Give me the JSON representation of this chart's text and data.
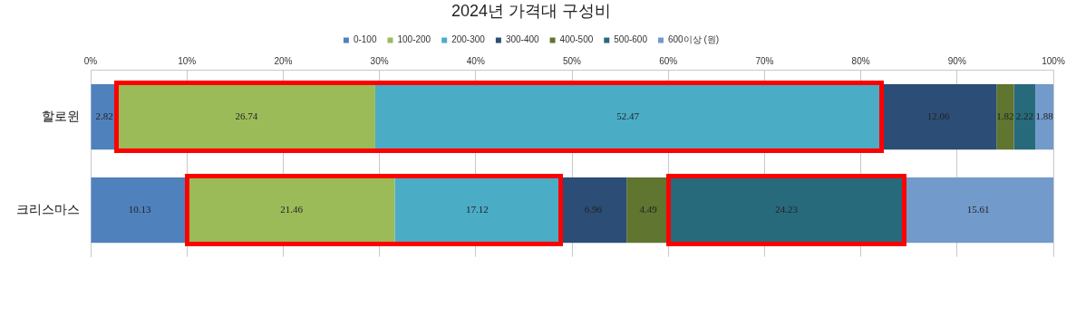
{
  "chart_data": {
    "type": "bar",
    "title": "2024년 가격대 구성비",
    "orientation": "horizontal",
    "stacked": true,
    "categories": [
      "할로윈",
      "크리스마스"
    ],
    "series": [
      {
        "name": "0-100",
        "color": "#4f81bd",
        "values": [
          2.82,
          10.13
        ]
      },
      {
        "name": "100-200",
        "color": "#9bbb59",
        "values": [
          26.74,
          21.46
        ]
      },
      {
        "name": "200-300",
        "color": "#4bacc6",
        "values": [
          52.47,
          17.12
        ]
      },
      {
        "name": "300-400",
        "color": "#2c4d75",
        "values": [
          12.06,
          6.96
        ]
      },
      {
        "name": "400-500",
        "color": "#5f7530",
        "values": [
          1.82,
          4.49
        ]
      },
      {
        "name": "500-600",
        "color": "#276a7c",
        "values": [
          2.22,
          24.23
        ]
      },
      {
        "name": "600이상 (원)",
        "color": "#729aca",
        "values": [
          1.88,
          15.61
        ]
      }
    ],
    "xlim": [
      0,
      100
    ],
    "xticks": [
      {
        "value": 0,
        "label": "0%"
      },
      {
        "value": 10,
        "label": "10%"
      },
      {
        "value": 20,
        "label": "20%"
      },
      {
        "value": 30,
        "label": "30%"
      },
      {
        "value": 40,
        "label": "40%"
      },
      {
        "value": 50,
        "label": "50%"
      },
      {
        "value": 60,
        "label": "60%"
      },
      {
        "value": 70,
        "label": "70%"
      },
      {
        "value": 80,
        "label": "80%"
      },
      {
        "value": 90,
        "label": "90%"
      },
      {
        "value": 100,
        "label": "100%"
      }
    ],
    "grid": "x",
    "legend": "top",
    "data_labels": true
  }
}
